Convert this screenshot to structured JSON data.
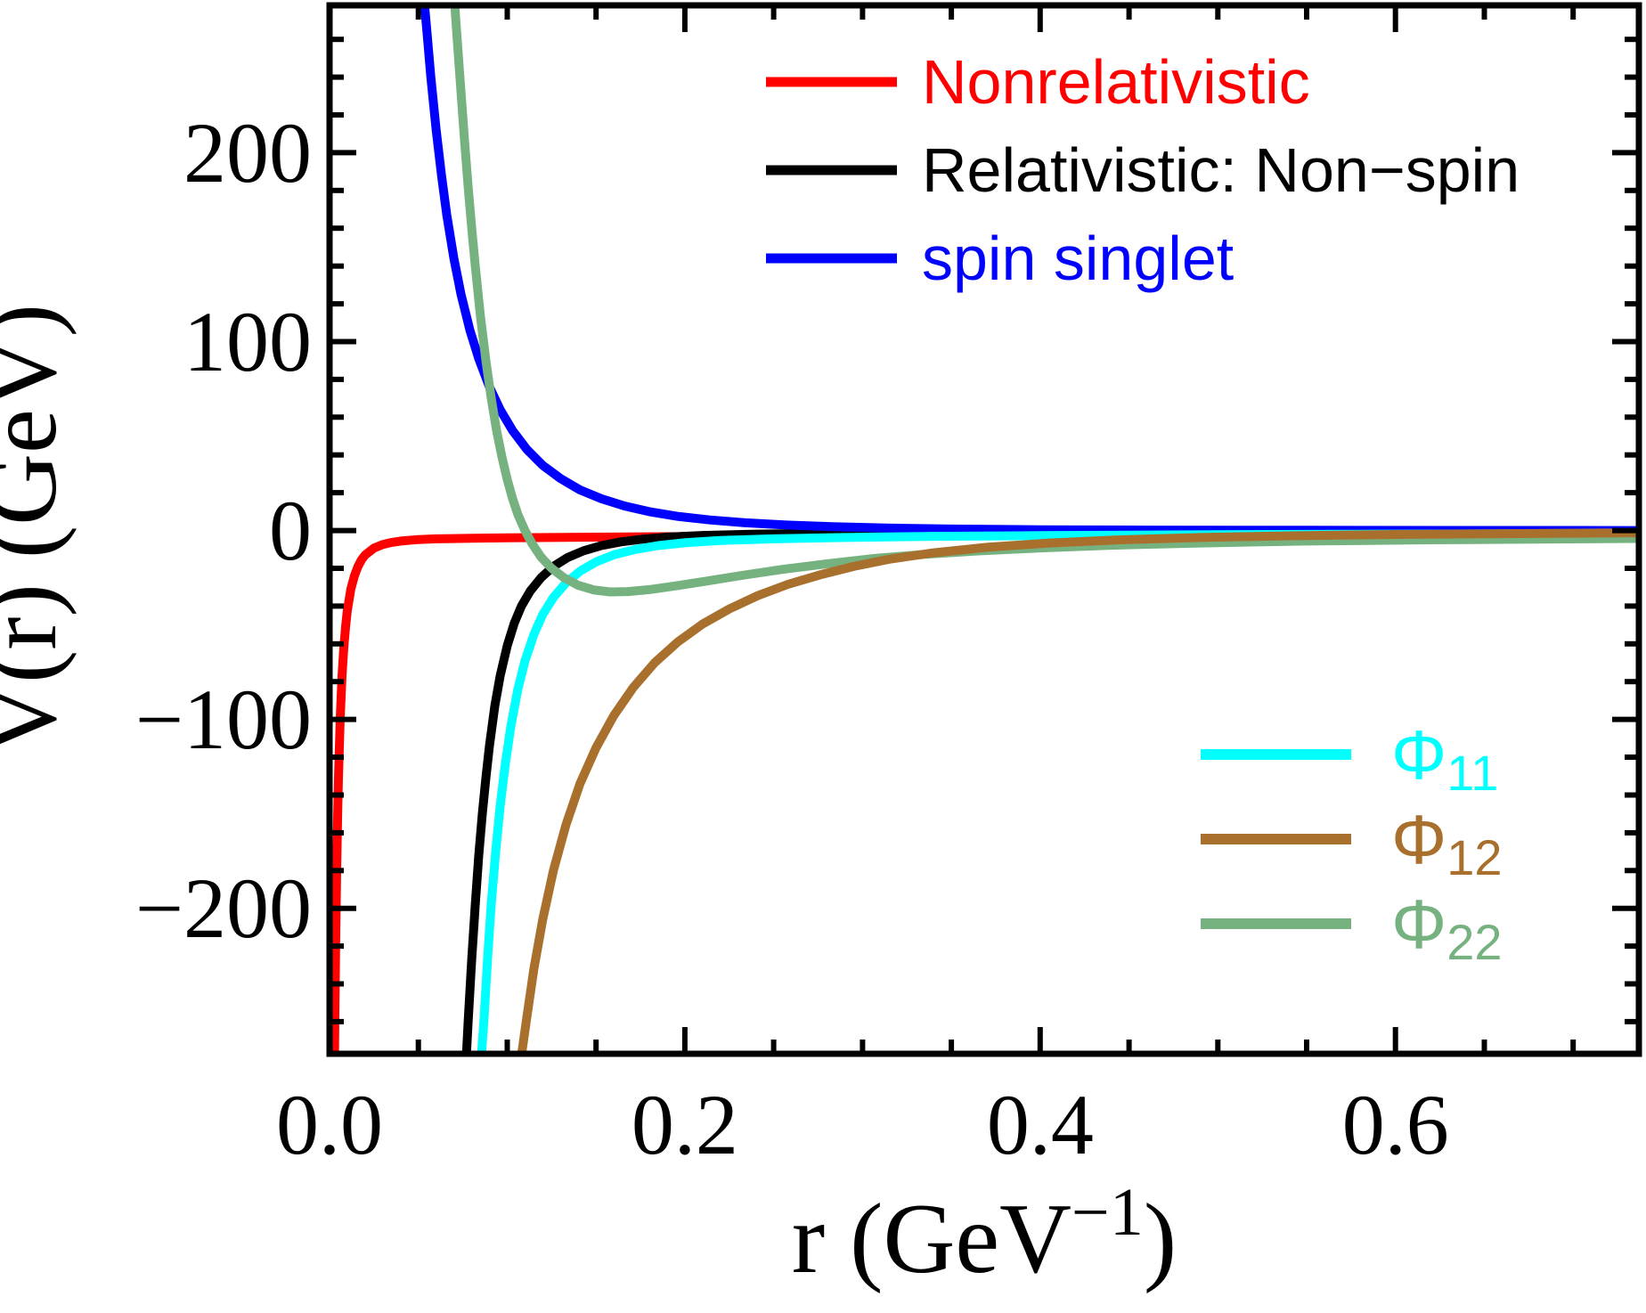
{
  "figure": {
    "background": "#ffffff",
    "axis_color": "#000000"
  },
  "chart_data": {
    "type": "line",
    "title": "",
    "xlabel": "r (GeV^-1)",
    "ylabel": "V(r) (GeV)",
    "x_title_parts": {
      "main": "r (GeV",
      "sup": "−1",
      "end": ")"
    },
    "y_title": "V(r) (GeV)",
    "xlim": [
      0,
      0.737
    ],
    "ylim": [
      -277,
      278
    ],
    "grid": false,
    "x_major_ticks": [
      {
        "value": 0.0,
        "label": "0.0"
      },
      {
        "value": 0.2,
        "label": "0.2"
      },
      {
        "value": 0.4,
        "label": "0.4"
      },
      {
        "value": 0.6,
        "label": "0.6"
      }
    ],
    "x_minor_step": 0.05,
    "y_major_ticks": [
      {
        "value": 200,
        "label": "200"
      },
      {
        "value": 100,
        "label": "100"
      },
      {
        "value": 0,
        "label": "0"
      },
      {
        "value": -100,
        "label": "−100"
      },
      {
        "value": -200,
        "label": "−200"
      }
    ],
    "y_minor_step": 20,
    "series": [
      {
        "name": "nonrelativistic",
        "label": "Nonrelativistic",
        "color": "#ff0000",
        "points": [
          [
            0.0028,
            -278
          ],
          [
            0.003,
            -255
          ],
          [
            0.0035,
            -214
          ],
          [
            0.004,
            -180
          ],
          [
            0.0045,
            -153
          ],
          [
            0.005,
            -131
          ],
          [
            0.006,
            -99
          ],
          [
            0.007,
            -77
          ],
          [
            0.008,
            -62
          ],
          [
            0.009,
            -51
          ],
          [
            0.01,
            -42.5
          ],
          [
            0.012,
            -31
          ],
          [
            0.014,
            -24
          ],
          [
            0.016,
            -19
          ],
          [
            0.018,
            -15.5
          ],
          [
            0.02,
            -13
          ],
          [
            0.025,
            -9.3
          ],
          [
            0.03,
            -7.4
          ],
          [
            0.035,
            -6.3
          ],
          [
            0.04,
            -5.6
          ],
          [
            0.05,
            -4.8
          ],
          [
            0.06,
            -4.4
          ],
          [
            0.08,
            -4.1
          ],
          [
            0.1,
            -3.9
          ],
          [
            0.15,
            -3.5
          ],
          [
            0.2,
            -3.2
          ],
          [
            0.25,
            -2.9
          ],
          [
            0.3,
            -2.7
          ],
          [
            0.4,
            -2.3
          ],
          [
            0.5,
            -1.9
          ],
          [
            0.6,
            -1.6
          ],
          [
            0.737,
            -1.3
          ]
        ]
      },
      {
        "name": "relativistic-non-spin",
        "label": "Relativistic: Non−spin",
        "color": "#000000",
        "points": [
          [
            0.077,
            -278
          ],
          [
            0.078,
            -260
          ],
          [
            0.08,
            -227
          ],
          [
            0.082,
            -198
          ],
          [
            0.084,
            -172
          ],
          [
            0.086,
            -150
          ],
          [
            0.088,
            -131
          ],
          [
            0.09,
            -114
          ],
          [
            0.093,
            -93
          ],
          [
            0.096,
            -77
          ],
          [
            0.1,
            -61
          ],
          [
            0.104,
            -49
          ],
          [
            0.108,
            -40
          ],
          [
            0.113,
            -32
          ],
          [
            0.119,
            -25
          ],
          [
            0.126,
            -19
          ],
          [
            0.134,
            -14.3
          ],
          [
            0.143,
            -10.7
          ],
          [
            0.153,
            -8
          ],
          [
            0.164,
            -6
          ],
          [
            0.176,
            -4.6
          ],
          [
            0.19,
            -3.5
          ],
          [
            0.21,
            -2.6
          ],
          [
            0.24,
            -1.9
          ],
          [
            0.28,
            -1.5
          ],
          [
            0.33,
            -1.2
          ],
          [
            0.4,
            -0.9
          ],
          [
            0.5,
            -0.7
          ],
          [
            0.6,
            -0.6
          ],
          [
            0.737,
            -0.4
          ]
        ]
      },
      {
        "name": "spin-singlet",
        "label": "spin singlet",
        "color": "#0000ff",
        "points": [
          [
            0.0535,
            278
          ],
          [
            0.055,
            262
          ],
          [
            0.057,
            240
          ],
          [
            0.06,
            212
          ],
          [
            0.063,
            188
          ],
          [
            0.066,
            167
          ],
          [
            0.07,
            144
          ],
          [
            0.074,
            125
          ],
          [
            0.079,
            106
          ],
          [
            0.084,
            91
          ],
          [
            0.09,
            76
          ],
          [
            0.096,
            64
          ],
          [
            0.103,
            53
          ],
          [
            0.111,
            43
          ],
          [
            0.12,
            34.5
          ],
          [
            0.13,
            27.5
          ],
          [
            0.141,
            21.5
          ],
          [
            0.153,
            16.8
          ],
          [
            0.166,
            13
          ],
          [
            0.18,
            10
          ],
          [
            0.196,
            7.5
          ],
          [
            0.214,
            5.6
          ],
          [
            0.234,
            4.1
          ],
          [
            0.257,
            2.9
          ],
          [
            0.283,
            2
          ],
          [
            0.313,
            1.3
          ],
          [
            0.35,
            0.8
          ],
          [
            0.4,
            0.4
          ],
          [
            0.46,
            0.2
          ],
          [
            0.55,
            0.1
          ],
          [
            0.737,
            0
          ]
        ]
      },
      {
        "name": "phi11",
        "label": "Φ11",
        "color": "#00ffff",
        "points": [
          [
            0.0855,
            -278
          ],
          [
            0.087,
            -258
          ],
          [
            0.089,
            -226
          ],
          [
            0.091,
            -198
          ],
          [
            0.0935,
            -170
          ],
          [
            0.096,
            -146
          ],
          [
            0.099,
            -123
          ],
          [
            0.102,
            -104
          ],
          [
            0.106,
            -84
          ],
          [
            0.11,
            -69
          ],
          [
            0.115,
            -55
          ],
          [
            0.12,
            -44.5
          ],
          [
            0.126,
            -35.5
          ],
          [
            0.133,
            -27.8
          ],
          [
            0.141,
            -21.5
          ],
          [
            0.15,
            -16.6
          ],
          [
            0.16,
            -12.9
          ],
          [
            0.172,
            -10
          ],
          [
            0.185,
            -8
          ],
          [
            0.2,
            -6.5
          ],
          [
            0.22,
            -5.3
          ],
          [
            0.25,
            -4.4
          ],
          [
            0.29,
            -3.7
          ],
          [
            0.34,
            -3.1
          ],
          [
            0.4,
            -2.7
          ],
          [
            0.5,
            -2.2
          ],
          [
            0.6,
            -1.9
          ],
          [
            0.737,
            -1.6
          ]
        ]
      },
      {
        "name": "phi22",
        "label": "Φ22",
        "color": "#76b280",
        "points": [
          [
            0.0705,
            278
          ],
          [
            0.072,
            258
          ],
          [
            0.074,
            232
          ],
          [
            0.076,
            206
          ],
          [
            0.078,
            182
          ],
          [
            0.08,
            160
          ],
          [
            0.082,
            140
          ],
          [
            0.085,
            113
          ],
          [
            0.088,
            90
          ],
          [
            0.091,
            70
          ],
          [
            0.094,
            53
          ],
          [
            0.097,
            39
          ],
          [
            0.1,
            27
          ],
          [
            0.103,
            17
          ],
          [
            0.106,
            8.5
          ],
          [
            0.11,
            0
          ],
          [
            0.114,
            -7
          ],
          [
            0.119,
            -14
          ],
          [
            0.125,
            -20
          ],
          [
            0.132,
            -25
          ],
          [
            0.14,
            -29
          ],
          [
            0.149,
            -31.5
          ],
          [
            0.158,
            -32.5
          ],
          [
            0.168,
            -32.3
          ],
          [
            0.18,
            -31.3
          ],
          [
            0.195,
            -29.3
          ],
          [
            0.212,
            -26.8
          ],
          [
            0.232,
            -23.8
          ],
          [
            0.255,
            -20.6
          ],
          [
            0.28,
            -17.6
          ],
          [
            0.307,
            -14.8
          ],
          [
            0.335,
            -12.6
          ],
          [
            0.365,
            -10.8
          ],
          [
            0.4,
            -9.2
          ],
          [
            0.44,
            -7.8
          ],
          [
            0.49,
            -6.6
          ],
          [
            0.55,
            -5.6
          ],
          [
            0.62,
            -4.9
          ],
          [
            0.737,
            -4.2
          ]
        ]
      },
      {
        "name": "phi12",
        "label": "Φ12",
        "color": "#a8702c",
        "points": [
          [
            0.108,
            -278
          ],
          [
            0.111,
            -258
          ],
          [
            0.115,
            -232
          ],
          [
            0.12,
            -206
          ],
          [
            0.126,
            -180
          ],
          [
            0.133,
            -156
          ],
          [
            0.141,
            -134
          ],
          [
            0.15,
            -115
          ],
          [
            0.16,
            -98
          ],
          [
            0.171,
            -83
          ],
          [
            0.183,
            -70
          ],
          [
            0.196,
            -59
          ],
          [
            0.21,
            -49.5
          ],
          [
            0.225,
            -41.5
          ],
          [
            0.241,
            -34.5
          ],
          [
            0.258,
            -28.5
          ],
          [
            0.276,
            -23.5
          ],
          [
            0.295,
            -19
          ],
          [
            0.315,
            -15.2
          ],
          [
            0.34,
            -11.8
          ],
          [
            0.37,
            -8.9
          ],
          [
            0.405,
            -6.6
          ],
          [
            0.445,
            -4.9
          ],
          [
            0.49,
            -3.7
          ],
          [
            0.54,
            -2.8
          ],
          [
            0.6,
            -2.1
          ],
          [
            0.67,
            -1.6
          ],
          [
            0.737,
            -1.2
          ]
        ]
      }
    ],
    "legend_top": {
      "position": "upper-center-right",
      "items": [
        {
          "label": "Nonrelativistic",
          "color": "#ff0000",
          "series": "nonrelativistic"
        },
        {
          "label": "Relativistic: Non−spin",
          "color": "#000000",
          "series": "relativistic-non-spin"
        },
        {
          "label": "spin singlet",
          "color": "#0000ff",
          "series": "spin-singlet"
        }
      ]
    },
    "legend_bottom": {
      "position": "lower-right",
      "items": [
        {
          "main": "Φ",
          "sub": "11",
          "color": "#00ffff",
          "series": "phi11"
        },
        {
          "main": "Φ",
          "sub": "12",
          "color": "#a8702c",
          "series": "phi12"
        },
        {
          "main": "Φ",
          "sub": "22",
          "color": "#76b280",
          "series": "phi22"
        }
      ]
    }
  }
}
